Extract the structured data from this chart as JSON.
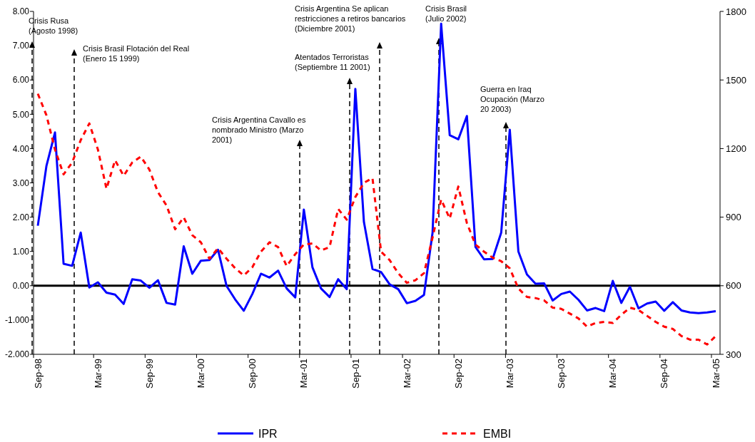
{
  "chart_data": {
    "type": "line",
    "categories": [
      "Sep-98",
      null,
      null,
      null,
      null,
      null,
      null,
      "Mar-99",
      null,
      null,
      null,
      null,
      null,
      "Sep-99",
      null,
      null,
      null,
      null,
      null,
      "Mar-00",
      null,
      null,
      null,
      null,
      null,
      "Sep-00",
      null,
      null,
      null,
      null,
      null,
      "Mar-01",
      null,
      null,
      null,
      null,
      null,
      "Sep-01",
      null,
      null,
      null,
      null,
      null,
      "Mar-02",
      null,
      null,
      null,
      null,
      null,
      "Sep-02",
      null,
      null,
      null,
      null,
      null,
      "Mar-03",
      null,
      null,
      null,
      null,
      null,
      "Sep-03",
      null,
      null,
      null,
      null,
      null,
      "Mar-04",
      null,
      null,
      null,
      null,
      null,
      "Sep-04",
      null,
      null,
      null,
      null,
      null,
      "Mar-05"
    ],
    "series": [
      {
        "name": "IPR",
        "color": "#0000ff",
        "line_style": "solid",
        "values": [
          1.75,
          3.49,
          4.47,
          0.64,
          0.58,
          1.55,
          -0.05,
          0.1,
          -0.2,
          -0.26,
          -0.53,
          0.19,
          0.15,
          -0.06,
          0.16,
          -0.5,
          -0.55,
          1.15,
          0.35,
          0.73,
          0.75,
          1.05,
          -0.01,
          -0.4,
          -0.73,
          -0.24,
          0.35,
          0.24,
          0.44,
          -0.08,
          -0.34,
          2.22,
          0.54,
          -0.08,
          -0.33,
          0.19,
          -0.1,
          5.74,
          1.86,
          0.49,
          0.4,
          0.04,
          -0.1,
          -0.51,
          -0.44,
          -0.27,
          1.55,
          7.64,
          4.39,
          4.27,
          4.95,
          1.13,
          0.77,
          0.78,
          1.55,
          4.55,
          1.0,
          0.33,
          0.06,
          0.07,
          -0.43,
          -0.24,
          -0.17,
          -0.41,
          -0.72,
          -0.65,
          -0.74,
          0.14,
          -0.5,
          -0.03,
          -0.66,
          -0.52,
          -0.46,
          -0.73,
          -0.48,
          -0.72,
          -0.78,
          -0.8,
          -0.78,
          -0.74
        ]
      },
      {
        "name": "EMBI",
        "color": "#ff0000",
        "line_style": "dashed",
        "axis": "y2",
        "values": [
          1440,
          1346,
          1196,
          1087,
          1139,
          1237,
          1310,
          1196,
          1024,
          1149,
          1081,
          1139,
          1165,
          1108,
          1009,
          951,
          847,
          899,
          821,
          790,
          718,
          764,
          718,
          676,
          645,
          681,
          749,
          790,
          769,
          686,
          738,
          780,
          785,
          754,
          769,
          936,
          889,
          988,
          1050,
          1071,
          749,
          712,
          655,
          613,
          624,
          655,
          811,
          977,
          894,
          1034,
          874,
          780,
          749,
          723,
          707,
          676,
          588,
          551,
          546,
          536,
          504,
          499,
          478,
          457,
          421,
          437,
          442,
          437,
          473,
          504,
          494,
          468,
          442,
          421,
          411,
          380,
          364,
          364,
          343,
          380
        ]
      }
    ],
    "ylim": [
      -2,
      8
    ],
    "yticks": [
      {
        "value": -2,
        "label": "-2.000"
      },
      {
        "value": -1,
        "label": "-1.000"
      },
      {
        "value": 0,
        "label": "0.00"
      },
      {
        "value": 1,
        "label": "1.00"
      },
      {
        "value": 2,
        "label": "2.00"
      },
      {
        "value": 3,
        "label": "3.00"
      },
      {
        "value": 4,
        "label": "4.00"
      },
      {
        "value": 5,
        "label": "5.00"
      },
      {
        "value": 6,
        "label": "6.00"
      },
      {
        "value": 7,
        "label": "7.00"
      },
      {
        "value": 8,
        "label": "8.00"
      }
    ],
    "y2lim": [
      300,
      1800
    ],
    "y2ticks": [
      300,
      600,
      900,
      1200,
      1500,
      1800
    ],
    "ref_lines": [
      {
        "axis": "y",
        "value": 0,
        "color": "#000000"
      }
    ],
    "annotations": [
      "Crisis Rusa (Agosto 1998)",
      "Crisis Brasil Flotación del Real (Enero 15  1999)",
      "Crisis Argentina Cavallo es nombrado Ministro (Marzo 2001)",
      "Atentados Terroristas (Septiembre 11 2001)",
      "Crisis Argentina Se aplican restricciones a retiros bancarios (Diciembre 2001)",
      "Crisis Brasil (Julio 2002)",
      "Guerra en Iraq Ocupación (Marzo 20 2003)"
    ],
    "legend": "bottom",
    "grid": false
  }
}
